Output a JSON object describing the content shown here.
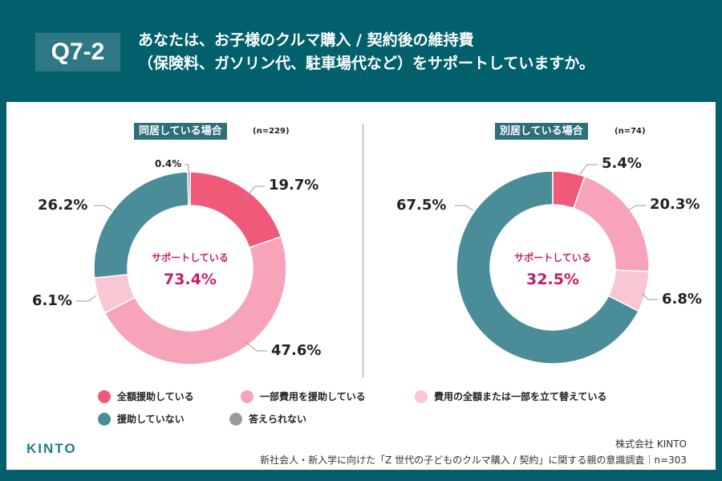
{
  "header": {
    "question_id": "Q7-2",
    "title_line1": "あなたは、お子様のクルマ購入 / 契約後の維持費",
    "title_line2": "（保険料、ガソリン代、駐車場代など）をサポートしていますか。"
  },
  "colors": {
    "background": "#02606d",
    "full_support": "#f05a78",
    "partial_support": "#f7a3b9",
    "temporary": "#f9c6d3",
    "no_support": "#4a8d98",
    "no_answer": "#9b9b9b",
    "center_text": "#c51d6a"
  },
  "chart_data": [
    {
      "type": "pie",
      "donut": true,
      "title": "同居している場合",
      "n_label": "(n=229)",
      "center_label": "サポートしている",
      "center_value": "73.4%",
      "categories": [
        "全額援助している",
        "一部費用を援助している",
        "費用の全額または一部を立て替えている",
        "援助していない",
        "答えられない"
      ],
      "values": [
        19.7,
        47.6,
        6.1,
        26.2,
        0.4
      ],
      "labels": [
        "19.7%",
        "47.6%",
        "6.1%",
        "26.2%",
        "0.4%"
      ]
    },
    {
      "type": "pie",
      "donut": true,
      "title": "別居している場合",
      "n_label": "(n=74)",
      "center_label": "サポートしている",
      "center_value": "32.5%",
      "categories": [
        "全額援助している",
        "一部費用を援助している",
        "費用の全額または一部を立て替えている",
        "援助していない"
      ],
      "values": [
        5.4,
        20.3,
        6.8,
        67.5
      ],
      "labels": [
        "5.4%",
        "20.3%",
        "6.8%",
        "67.5%"
      ]
    }
  ],
  "legend": [
    {
      "label": "全額援助している",
      "color": "#f05a78"
    },
    {
      "label": "一部費用を援助している",
      "color": "#f7a3b9"
    },
    {
      "label": "費用の全額または一部を立て替えている",
      "color": "#f9c6d3"
    },
    {
      "label": "援助していない",
      "color": "#4a8d98"
    },
    {
      "label": "答えられない",
      "color": "#9b9b9b"
    }
  ],
  "footer": {
    "logo": "KINTO",
    "company": "株式会社 KINTO",
    "survey": "新社会人・新入学に向けた「Z 世代の子どものクルマ購入 / 契約」に関する親の意識調査｜n=303"
  }
}
